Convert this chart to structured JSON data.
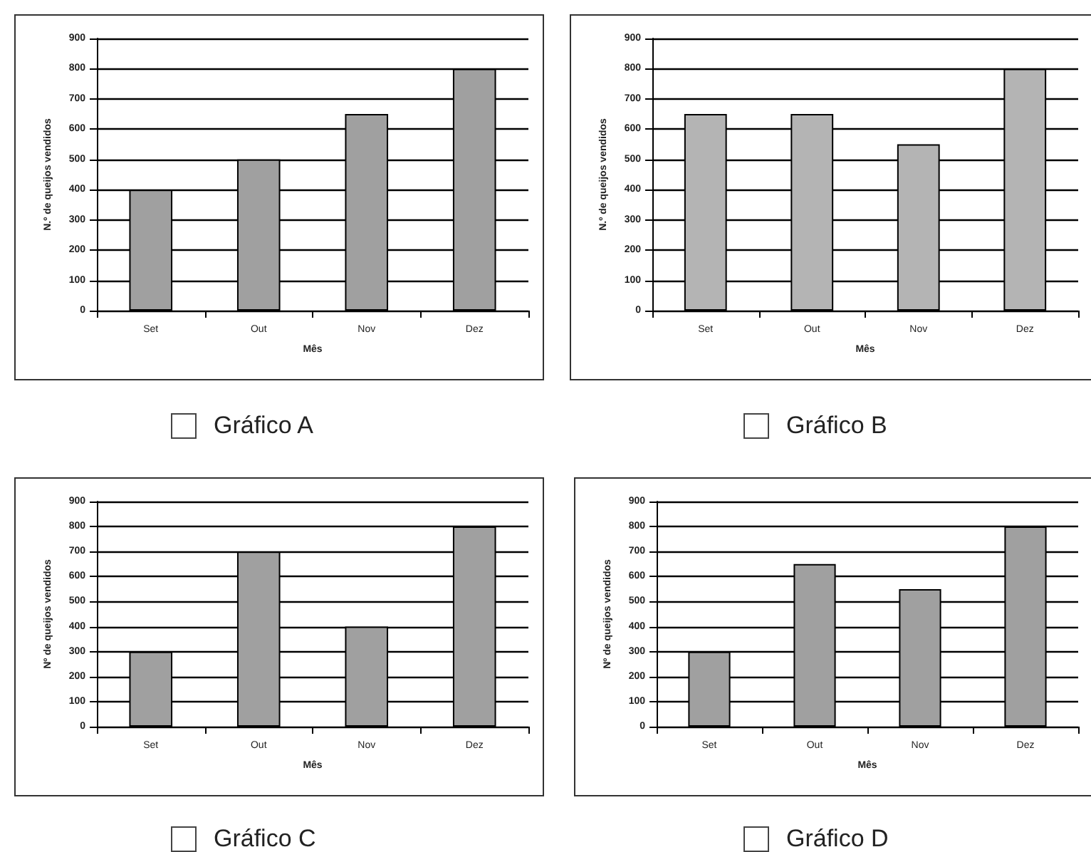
{
  "chart_data": [
    {
      "type": "bar",
      "title": "Gráfico A",
      "xlabel": "Mês",
      "ylabel": "N.º de queijos vendidos",
      "categories": [
        "Set",
        "Out",
        "Nov",
        "Dez"
      ],
      "values": [
        400,
        500,
        650,
        800
      ],
      "color": "#a0a0a0",
      "ylim": [
        0,
        900
      ],
      "yticks": [
        0,
        100,
        200,
        300,
        400,
        500,
        600,
        700,
        800,
        900
      ],
      "grid": "y"
    },
    {
      "type": "bar",
      "title": "Gráfico B",
      "xlabel": "Mês",
      "ylabel": "N.º de queijos vendidos",
      "categories": [
        "Set",
        "Out",
        "Nov",
        "Dez"
      ],
      "values": [
        650,
        650,
        550,
        800
      ],
      "color": "#b4b4b4",
      "ylim": [
        0,
        900
      ],
      "yticks": [
        0,
        100,
        200,
        300,
        400,
        500,
        600,
        700,
        800,
        900
      ],
      "grid": "y"
    },
    {
      "type": "bar",
      "title": "Gráfico C",
      "xlabel": "Mês",
      "ylabel": "Nº de queijos vendidos",
      "categories": [
        "Set",
        "Out",
        "Nov",
        "Dez"
      ],
      "values": [
        300,
        700,
        400,
        800
      ],
      "color": "#a0a0a0",
      "ylim": [
        0,
        900
      ],
      "yticks": [
        0,
        100,
        200,
        300,
        400,
        500,
        600,
        700,
        800,
        900
      ],
      "grid": "y"
    },
    {
      "type": "bar",
      "title": "Gráfico D",
      "xlabel": "Mês",
      "ylabel": "Nº de queijos vendidos",
      "categories": [
        "Set",
        "Out",
        "Nov",
        "Dez"
      ],
      "values": [
        300,
        650,
        550,
        800
      ],
      "color": "#a0a0a0",
      "ylim": [
        0,
        900
      ],
      "yticks": [
        0,
        100,
        200,
        300,
        400,
        500,
        600,
        700,
        800,
        900
      ],
      "grid": "y"
    }
  ]
}
